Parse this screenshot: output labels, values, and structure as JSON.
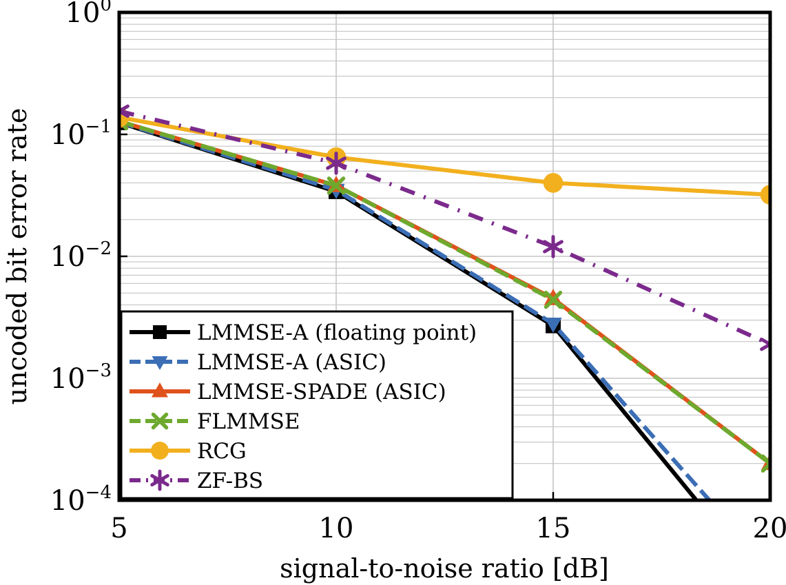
{
  "chart_data": {
    "type": "line",
    "title": "",
    "xlabel": "signal-to-noise ratio [dB]",
    "ylabel": "uncoded bit error rate",
    "xlim": [
      5,
      20
    ],
    "ylim": [
      0.0001,
      1
    ],
    "yscale": "log",
    "grid": true,
    "legend_position": "bottom-left",
    "x_ticks": [
      {
        "value": 5,
        "label": "5"
      },
      {
        "value": 10,
        "label": "10"
      },
      {
        "value": 15,
        "label": "15"
      },
      {
        "value": 20,
        "label": "20"
      }
    ],
    "y_ticks": [
      {
        "value": 1,
        "base": "10",
        "exp": "0"
      },
      {
        "value": 0.1,
        "base": "10",
        "exp": "−1"
      },
      {
        "value": 0.01,
        "base": "10",
        "exp": "−2"
      },
      {
        "value": 0.001,
        "base": "10",
        "exp": "−3"
      },
      {
        "value": 0.0001,
        "base": "10",
        "exp": "−4"
      }
    ],
    "series": [
      {
        "name": "LMMSE-A (floating point)",
        "color": "#000000",
        "dash": "solid",
        "marker": "square",
        "points": [
          [
            5,
            0.125
          ],
          [
            10,
            0.034
          ],
          [
            15,
            0.0027
          ],
          [
            18.3,
            0.0001
          ]
        ]
      },
      {
        "name": "LMMSE-A (ASIC)",
        "color": "#3b6eb5",
        "dash": "dashed",
        "marker": "triangle-down",
        "points": [
          [
            5,
            0.126
          ],
          [
            10,
            0.035
          ],
          [
            15,
            0.0028
          ],
          [
            18.6,
            0.0001
          ]
        ]
      },
      {
        "name": "LMMSE-SPADE (ASIC)",
        "color": "#e0521c",
        "dash": "solid",
        "marker": "triangle-up",
        "points": [
          [
            5,
            0.128
          ],
          [
            10,
            0.038
          ],
          [
            15,
            0.0045
          ],
          [
            20,
            0.0002
          ]
        ]
      },
      {
        "name": "FLMMSE",
        "color": "#6ea92e",
        "dash": "dashed",
        "marker": "cross",
        "points": [
          [
            5,
            0.128
          ],
          [
            10,
            0.038
          ],
          [
            15,
            0.0044
          ],
          [
            20,
            0.0002
          ]
        ]
      },
      {
        "name": "RCG",
        "color": "#f2b01e",
        "dash": "solid",
        "marker": "circle",
        "points": [
          [
            5,
            0.138
          ],
          [
            10,
            0.065
          ],
          [
            15,
            0.04
          ],
          [
            20,
            0.032
          ]
        ]
      },
      {
        "name": "ZF-BS",
        "color": "#7b2a8c",
        "dash": "dashdot",
        "marker": "star",
        "points": [
          [
            5,
            0.155
          ],
          [
            10,
            0.058
          ],
          [
            15,
            0.012
          ],
          [
            20,
            0.0019
          ]
        ]
      }
    ]
  }
}
